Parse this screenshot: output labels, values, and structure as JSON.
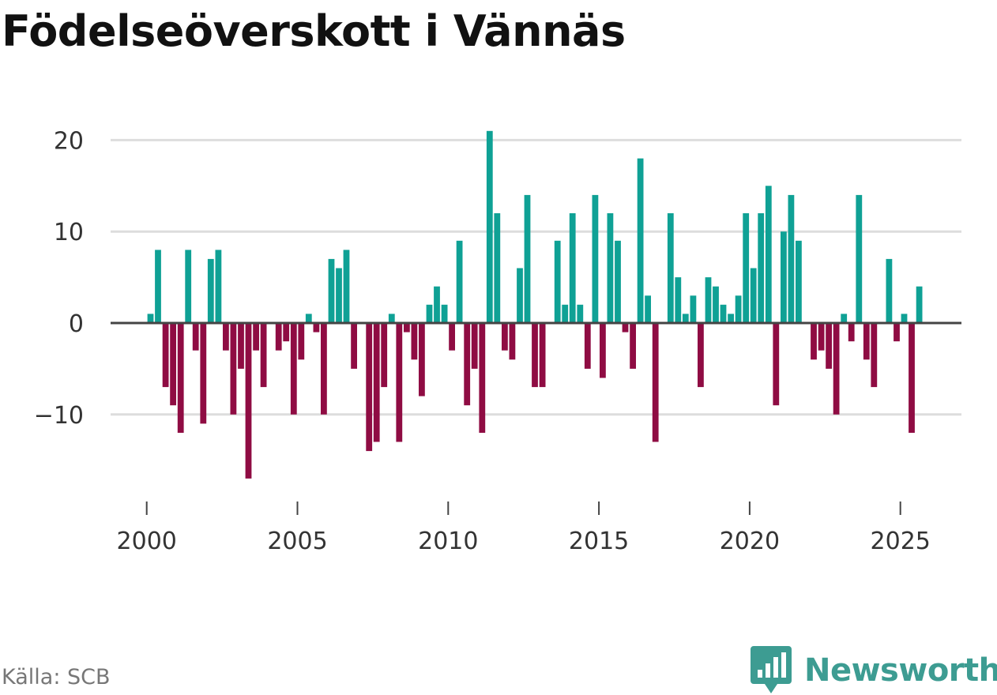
{
  "title": "Födelseöverskott i Vännäs",
  "source": "Källa: SCB",
  "brand": "Newsworthy",
  "colors": {
    "positive": "#0fa195",
    "negative": "#8f0c43",
    "grid": "#dddddd",
    "zero_line": "#444444",
    "brand": "#3d9c92"
  },
  "chart_data": {
    "type": "bar",
    "title": "Födelseöverskott i Vännäs",
    "frequency": "quarterly",
    "start": [
      2000,
      1
    ],
    "values": [
      1,
      8,
      -7,
      -9,
      -12,
      8,
      -3,
      -11,
      7,
      8,
      -3,
      -10,
      -5,
      -17,
      -3,
      -7,
      0,
      -3,
      -2,
      -10,
      -4,
      1,
      -1,
      -10,
      7,
      6,
      8,
      -5,
      0,
      -14,
      -13,
      -7,
      1,
      -13,
      -1,
      -4,
      -8,
      2,
      4,
      2,
      -3,
      9,
      -9,
      -5,
      -12,
      21,
      12,
      -3,
      -4,
      6,
      14,
      -7,
      -7,
      0,
      9,
      2,
      12,
      2,
      -5,
      14,
      -6,
      12,
      9,
      -1,
      -5,
      18,
      3,
      -13,
      0,
      12,
      5,
      1,
      3,
      -7,
      5,
      4,
      2,
      1,
      3,
      12,
      6,
      12,
      15,
      -9,
      10,
      14,
      9,
      0,
      -4,
      -3,
      -5,
      -10,
      1,
      -2,
      14,
      -4,
      -7,
      0,
      7,
      -2,
      1,
      -12,
      4
    ],
    "x_ticks": [
      "2000",
      "2005",
      "2010",
      "2015",
      "2020",
      "2025"
    ],
    "y_ticks": [
      "20",
      "10",
      "0",
      "−10"
    ],
    "ylim": [
      -19,
      23
    ],
    "xlabel": "",
    "ylabel": "",
    "grid": true
  }
}
